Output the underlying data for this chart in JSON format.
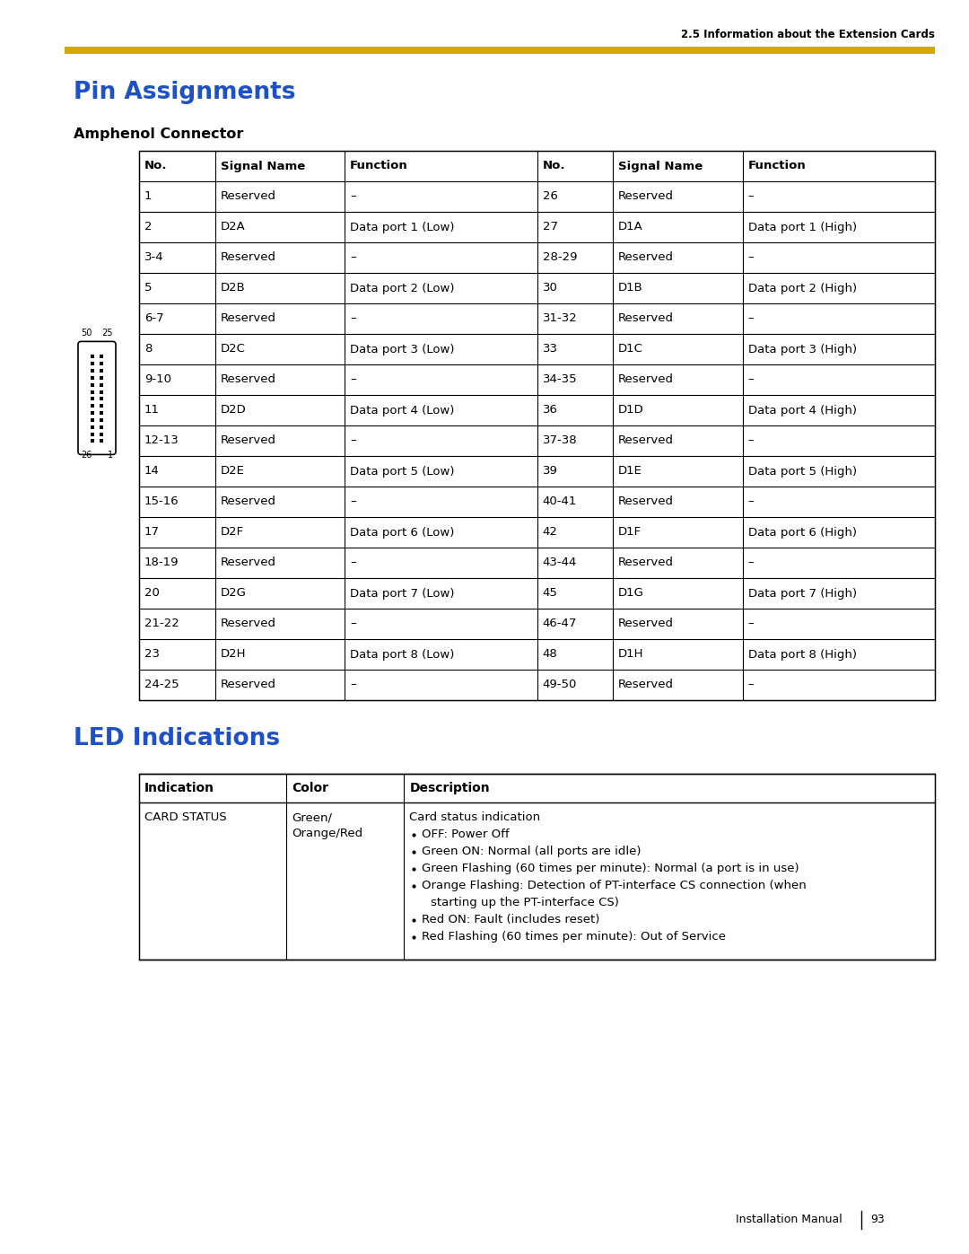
{
  "header_text": "2.5 Information about the Extension Cards",
  "title1": "Pin Assignments",
  "subtitle1": "Amphenol Connector",
  "title2": "LED Indications",
  "footer": "Installation Manual",
  "page_number": "93",
  "gold_bar_color": "#D4A800",
  "title_color": "#1E50C8",
  "header_color": "#000000",
  "bg_color": "#FFFFFF",
  "table1_headers": [
    "No.",
    "Signal Name",
    "Function",
    "No.",
    "Signal Name",
    "Function"
  ],
  "table1_rows": [
    [
      "1",
      "Reserved",
      "–",
      "26",
      "Reserved",
      "–"
    ],
    [
      "2",
      "D2A",
      "Data port 1 (Low)",
      "27",
      "D1A",
      "Data port 1 (High)"
    ],
    [
      "3-4",
      "Reserved",
      "–",
      "28-29",
      "Reserved",
      "–"
    ],
    [
      "5",
      "D2B",
      "Data port 2 (Low)",
      "30",
      "D1B",
      "Data port 2 (High)"
    ],
    [
      "6-7",
      "Reserved",
      "–",
      "31-32",
      "Reserved",
      "–"
    ],
    [
      "8",
      "D2C",
      "Data port 3 (Low)",
      "33",
      "D1C",
      "Data port 3 (High)"
    ],
    [
      "9-10",
      "Reserved",
      "–",
      "34-35",
      "Reserved",
      "–"
    ],
    [
      "11",
      "D2D",
      "Data port 4 (Low)",
      "36",
      "D1D",
      "Data port 4 (High)"
    ],
    [
      "12-13",
      "Reserved",
      "–",
      "37-38",
      "Reserved",
      "–"
    ],
    [
      "14",
      "D2E",
      "Data port 5 (Low)",
      "39",
      "D1E",
      "Data port 5 (High)"
    ],
    [
      "15-16",
      "Reserved",
      "–",
      "40-41",
      "Reserved",
      "–"
    ],
    [
      "17",
      "D2F",
      "Data port 6 (Low)",
      "42",
      "D1F",
      "Data port 6 (High)"
    ],
    [
      "18-19",
      "Reserved",
      "–",
      "43-44",
      "Reserved",
      "–"
    ],
    [
      "20",
      "D2G",
      "Data port 7 (Low)",
      "45",
      "D1G",
      "Data port 7 (High)"
    ],
    [
      "21-22",
      "Reserved",
      "–",
      "46-47",
      "Reserved",
      "–"
    ],
    [
      "23",
      "D2H",
      "Data port 8 (Low)",
      "48",
      "D1H",
      "Data port 8 (High)"
    ],
    [
      "24-25",
      "Reserved",
      "–",
      "49-50",
      "Reserved",
      "–"
    ]
  ],
  "table2_headers": [
    "Indication",
    "Color",
    "Description"
  ],
  "table2_row": {
    "indication": "CARD STATUS",
    "color_line1": "Green/",
    "color_line2": "Orange/Red",
    "description_title": "Card status indication",
    "bullets": [
      "OFF: Power Off",
      "Green ON: Normal (all ports are idle)",
      "Green Flashing (60 times per minute): Normal (a port is in use)",
      "Orange Flashing: Detection of PT-interface CS connection (when",
      "starting up the PT-interface CS)",
      "Red ON: Fault (includes reset)",
      "Red Flashing (60 times per minute): Out of Service"
    ],
    "bullet_flags": [
      true,
      true,
      true,
      true,
      false,
      true,
      true
    ]
  }
}
